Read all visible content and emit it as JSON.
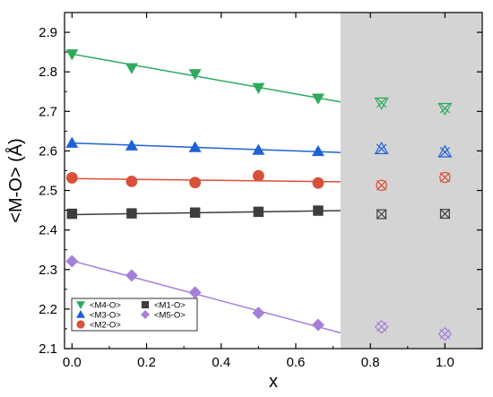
{
  "chart_data": {
    "type": "scatter",
    "xlabel": "x",
    "ylabel": "<M-O> (Å)",
    "xlim": [
      -0.02,
      1.1
    ],
    "ylim": [
      2.1,
      2.95
    ],
    "x_ticks": [
      0.0,
      0.2,
      0.4,
      0.6,
      0.8,
      1.0
    ],
    "x_tick_labels": [
      "0.0",
      "0.2",
      "0.4",
      "0.6",
      "0.8",
      "1.0"
    ],
    "y_ticks": [
      2.1,
      2.2,
      2.3,
      2.4,
      2.5,
      2.6,
      2.7,
      2.8,
      2.9
    ],
    "y_tick_labels": [
      "2.1",
      "2.2",
      "2.3",
      "2.4",
      "2.5",
      "2.6",
      "2.7",
      "2.8",
      "2.9"
    ],
    "shaded_region": {
      "x_from": 0.72,
      "x_to": 1.1,
      "color": "#d4d4d4"
    },
    "legend_placement": "bottom-left",
    "series": [
      {
        "name": "<M4-O>",
        "color": "#2eaa5e",
        "marker": "triangle-down",
        "x": [
          0.0,
          0.16,
          0.33,
          0.5,
          0.66
        ],
        "y": [
          2.845,
          2.81,
          2.795,
          2.76,
          2.733
        ],
        "fit": {
          "x": [
            0.0,
            0.72
          ],
          "y": [
            2.845,
            2.724
          ]
        },
        "crossed_x": [
          0.83,
          1.0
        ],
        "crossed_y": [
          2.722,
          2.708
        ]
      },
      {
        "name": "<M3-O>",
        "color": "#1f62d6",
        "marker": "triangle-up",
        "x": [
          0.0,
          0.16,
          0.33,
          0.5,
          0.66
        ],
        "y": [
          2.62,
          2.613,
          2.609,
          2.602,
          2.599
        ],
        "fit": {
          "x": [
            0.0,
            0.72
          ],
          "y": [
            2.62,
            2.596
          ]
        },
        "crossed_x": [
          0.83,
          1.0
        ],
        "crossed_y": [
          2.605,
          2.597
        ]
      },
      {
        "name": "<M2-O>",
        "color": "#d9503a",
        "marker": "circle",
        "x": [
          0.0,
          0.16,
          0.33,
          0.5,
          0.66
        ],
        "y": [
          2.532,
          2.523,
          2.52,
          2.537,
          2.519
        ],
        "fit": {
          "x": [
            0.0,
            0.72
          ],
          "y": [
            2.53,
            2.522
          ]
        },
        "crossed_x": [
          0.83,
          1.0
        ],
        "crossed_y": [
          2.513,
          2.533
        ]
      },
      {
        "name": "<M1-O>",
        "color": "#3d3d3d",
        "marker": "square",
        "x": [
          0.0,
          0.16,
          0.33,
          0.5,
          0.66
        ],
        "y": [
          2.441,
          2.442,
          2.444,
          2.446,
          2.449
        ],
        "fit": {
          "x": [
            0.0,
            0.72
          ],
          "y": [
            2.439,
            2.449
          ]
        },
        "crossed_x": [
          0.83,
          1.0
        ],
        "crossed_y": [
          2.44,
          2.441
        ]
      },
      {
        "name": "<M5-O>",
        "color": "#a67fd9",
        "marker": "diamond",
        "x": [
          0.0,
          0.16,
          0.33,
          0.5,
          0.66
        ],
        "y": [
          2.321,
          2.285,
          2.242,
          2.19,
          2.16
        ],
        "fit": {
          "x": [
            0.0,
            0.72
          ],
          "y": [
            2.322,
            2.14
          ]
        },
        "crossed_x": [
          0.83,
          1.0
        ],
        "crossed_y": [
          2.155,
          2.137
        ]
      }
    ]
  }
}
